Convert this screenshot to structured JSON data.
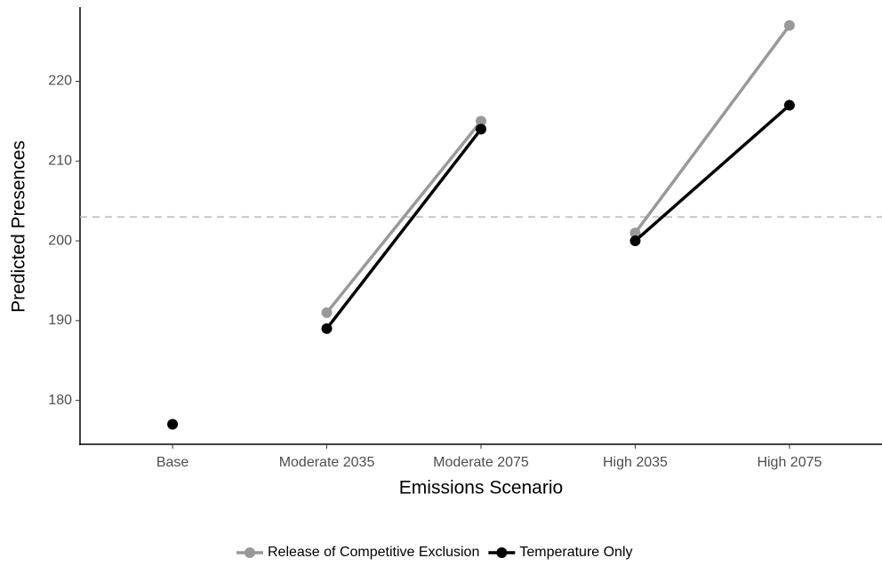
{
  "chart_data": {
    "type": "line",
    "x_label": "Emissions Scenario",
    "y_label": "Predicted Presences",
    "categories": [
      "Base",
      "Moderate 2035",
      "Moderate 2075",
      "High 2035",
      "High 2075"
    ],
    "line_groups": [
      [
        0
      ],
      [
        1,
        2
      ],
      [
        3,
        4
      ]
    ],
    "series": [
      {
        "name": "Release of Competitive Exclusion",
        "color": "#999999",
        "values": [
          null,
          191,
          215,
          201,
          227
        ]
      },
      {
        "name": "Temperature Only",
        "color": "#000000",
        "values": [
          177,
          189,
          214,
          200,
          217
        ]
      }
    ],
    "ylim": [
      174.5,
      229.3
    ],
    "yticks": [
      180,
      190,
      200,
      210,
      220
    ],
    "reference_line": {
      "value": 203,
      "color": "#bbbbbb",
      "dashed": true
    },
    "legend": "bottom",
    "grid": false
  }
}
